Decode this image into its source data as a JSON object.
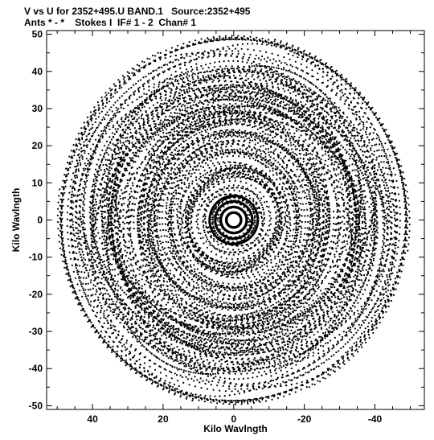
{
  "chart_data": {
    "type": "scatter",
    "title": "V vs U for 2352+495.U BAND.1   Source:2352+495",
    "subtitle": "Ants * - *    Stokes I  IF# 1 - 2  Chan# 1",
    "xlabel": "Kilo Wavlngth",
    "ylabel": "Kilo Wavlngth",
    "xlim": [
      53,
      -54
    ],
    "ylim": [
      -51,
      51
    ],
    "x_ticks": [
      40,
      20,
      0,
      -20,
      -40
    ],
    "x_tick_labels": [
      "40",
      "20",
      "0",
      "-20",
      "-40"
    ],
    "y_ticks": [
      50,
      40,
      30,
      20,
      10,
      0,
      -10,
      -20,
      -30,
      -40,
      -50
    ],
    "y_tick_labels": [
      "50",
      "40",
      "30",
      "20",
      "10",
      "0",
      "-10",
      "-20",
      "-30",
      "-40",
      "-50"
    ],
    "grid": false,
    "legend": "none",
    "marker_color": "#000000",
    "distribution": {
      "description_note": "",
      "outer_radius": 50,
      "inner_dense_ring_radii": [
        2,
        3.5,
        5,
        6.5
      ],
      "center": [
        0,
        0
      ]
    }
  }
}
